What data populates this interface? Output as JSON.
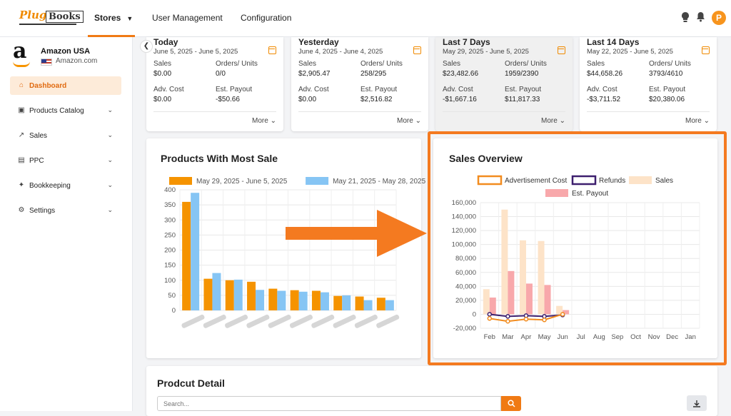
{
  "header": {
    "logo_plug": "Plug",
    "logo_books": "Books",
    "nav": [
      {
        "label": "Stores",
        "active": true
      },
      {
        "label": "User Management"
      },
      {
        "label": "Configuration"
      }
    ],
    "avatar_initial": "P",
    "brand_color": "#f07a14"
  },
  "sidebar": {
    "store_name": "Amazon USA",
    "store_domain": "Amazon.com",
    "items": [
      {
        "label": "Dashboard",
        "icon": "home-icon",
        "active": true
      },
      {
        "label": "Products Catalog",
        "icon": "catalog-icon"
      },
      {
        "label": "Sales",
        "icon": "chart-icon"
      },
      {
        "label": "PPC",
        "icon": "card-icon"
      },
      {
        "label": "Bookkeeping",
        "icon": "puzzle-icon"
      },
      {
        "label": "Settings",
        "icon": "gear-icon"
      }
    ]
  },
  "stat_cards": [
    {
      "title": "Today",
      "range": "June 5, 2025 - June 5, 2025",
      "sales_label": "Sales",
      "sales": "$0.00",
      "orders_label": "Orders/ Units",
      "orders": "0/0",
      "adv_label": "Adv. Cost",
      "adv": "$0.00",
      "payout_label": "Est. Payout",
      "payout": "-$50.66",
      "more": "More"
    },
    {
      "title": "Yesterday",
      "range": "June 4, 2025 - June 4, 2025",
      "sales_label": "Sales",
      "sales": "$2,905.47",
      "orders_label": "Orders/ Units",
      "orders": "258/295",
      "adv_label": "Adv. Cost",
      "adv": "$0.00",
      "payout_label": "Est. Payout",
      "payout": "$2,516.82",
      "more": "More"
    },
    {
      "title": "Last 7 Days",
      "range": "May 29, 2025 - June 5, 2025",
      "sales_label": "Sales",
      "sales": "$23,482.66",
      "orders_label": "Orders/ Units",
      "orders": "1959/2390",
      "adv_label": "Adv. Cost",
      "adv": "-$1,667.16",
      "payout_label": "Est. Payout",
      "payout": "$11,817.33",
      "more": "More"
    },
    {
      "title": "Last 14 Days",
      "range": "May 22, 2025 - June 5, 2025",
      "sales_label": "Sales",
      "sales": "$44,658.26",
      "orders_label": "Orders/ Units",
      "orders": "3793/4610",
      "adv_label": "Adv. Cost",
      "adv": "-$3,711.52",
      "payout_label": "Est. Payout",
      "payout": "$20,380.06",
      "more": "More"
    }
  ],
  "products_panel": {
    "title": "Products With Most Sale"
  },
  "sales_panel": {
    "title": "Sales Overview"
  },
  "detail_panel": {
    "title": "Prodcut Detail",
    "search_placeholder": "Search..."
  },
  "chart_data": [
    {
      "type": "bar",
      "title": "Products With Most Sale",
      "categories": [
        "",
        "",
        "",
        "",
        "",
        "",
        "",
        "",
        "",
        ""
      ],
      "series": [
        {
          "name": "May 29, 2025 - June 5, 2025",
          "color": "#f59300",
          "values": [
            360,
            105,
            100,
            95,
            72,
            67,
            65,
            48,
            46,
            42
          ]
        },
        {
          "name": "May 21, 2025 - May 28, 2025",
          "color": "#86c5f4",
          "values": [
            390,
            124,
            102,
            68,
            65,
            62,
            60,
            50,
            34,
            34
          ]
        }
      ],
      "ylim": [
        0,
        400
      ],
      "yticks": [
        0,
        50,
        100,
        150,
        200,
        250,
        300,
        350,
        400
      ],
      "grid": true,
      "legend": "top"
    },
    {
      "type": "bar",
      "title": "Sales Overview",
      "categories": [
        "Feb",
        "Mar",
        "Apr",
        "May",
        "Jun",
        "Jul",
        "Aug",
        "Sep",
        "Oct",
        "Nov",
        "Dec",
        "Jan"
      ],
      "series": [
        {
          "name": "Sales",
          "type": "bar",
          "color": "#fde3c8",
          "values": [
            36000,
            150000,
            106000,
            105000,
            12000,
            0,
            0,
            0,
            0,
            0,
            0,
            0
          ]
        },
        {
          "name": "Est. Payout",
          "type": "bar",
          "color": "#f8a8ab",
          "values": [
            24000,
            62000,
            44000,
            42000,
            6000,
            0,
            0,
            0,
            0,
            0,
            0,
            0
          ]
        },
        {
          "name": "Refunds",
          "type": "line",
          "color": "#3d1f6e",
          "values": [
            0,
            -3000,
            -2000,
            -3000,
            -1000,
            null,
            null,
            null,
            null,
            null,
            null,
            null
          ]
        },
        {
          "name": "Advertisement Cost",
          "type": "line",
          "color": "#f28c1f",
          "values": [
            -6000,
            -10000,
            -7000,
            -8000,
            0,
            null,
            null,
            null,
            null,
            null,
            null,
            null
          ]
        }
      ],
      "ylim": [
        -20000,
        160000
      ],
      "yticks": [
        -20000,
        0,
        20000,
        40000,
        60000,
        80000,
        100000,
        120000,
        140000,
        160000
      ],
      "ytick_labels": [
        "-20,000",
        "0",
        "20,000",
        "40,000",
        "60,000",
        "80,000",
        "100,000",
        "120,000",
        "140,000",
        "160,000"
      ],
      "grid": true,
      "legend": "top"
    }
  ]
}
